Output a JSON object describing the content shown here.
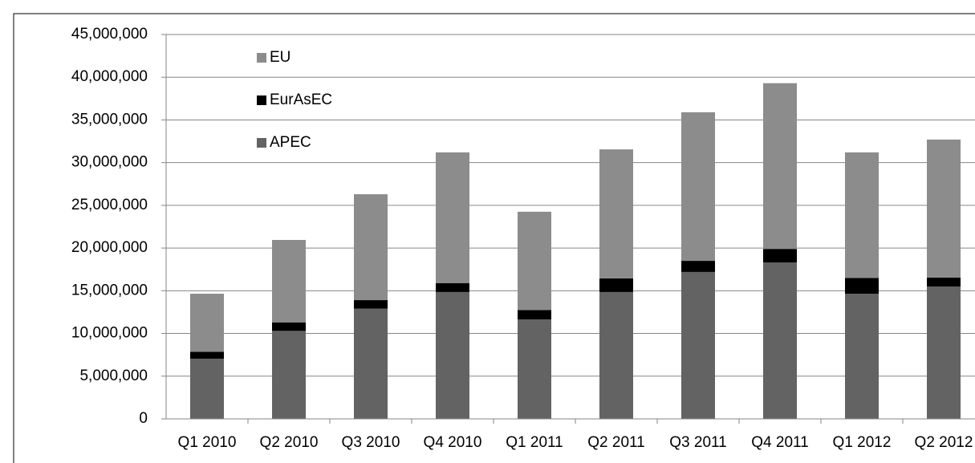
{
  "chart_data": {
    "type": "stacked_bar",
    "categories": [
      "Q1 2010",
      "Q2 2010",
      "Q3 2010",
      "Q4 2010",
      "Q1 2011",
      "Q2 2011",
      "Q3 2011",
      "Q4 2011",
      "Q1 2012",
      "Q2 2012"
    ],
    "series": [
      {
        "name": "APEC",
        "color": "#636363",
        "values": [
          7050000,
          10300000,
          12900000,
          14850000,
          11650000,
          14850000,
          17200000,
          18300000,
          14650000,
          15500000
        ]
      },
      {
        "name": "EurAsEC",
        "color": "#000000",
        "values": [
          800000,
          1000000,
          1000000,
          1050000,
          1100000,
          1600000,
          1300000,
          1600000,
          1850000,
          1050000
        ]
      },
      {
        "name": "EU",
        "color": "#8c8c8c",
        "values": [
          6800000,
          9650000,
          12400000,
          15300000,
          11500000,
          15100000,
          17400000,
          19400000,
          14700000,
          16150000
        ]
      }
    ],
    "ylim": [
      0,
      45000000
    ],
    "yticks": [
      0,
      {
        "value": 5000000,
        "label": "5,000,000"
      },
      {
        "value": 10000000,
        "label": "10,000,000"
      },
      {
        "value": 15000000,
        "label": "15,000,000"
      },
      {
        "value": 20000000,
        "label": "20,000,000"
      },
      {
        "value": 25000000,
        "label": "25,000,000"
      },
      {
        "value": 30000000,
        "label": "30,000,000"
      },
      {
        "value": 35000000,
        "label": "35,000,000"
      },
      {
        "value": 40000000,
        "label": "40,000,000"
      },
      {
        "value": 45000000,
        "label": "45,000,000"
      }
    ],
    "grid": true
  }
}
